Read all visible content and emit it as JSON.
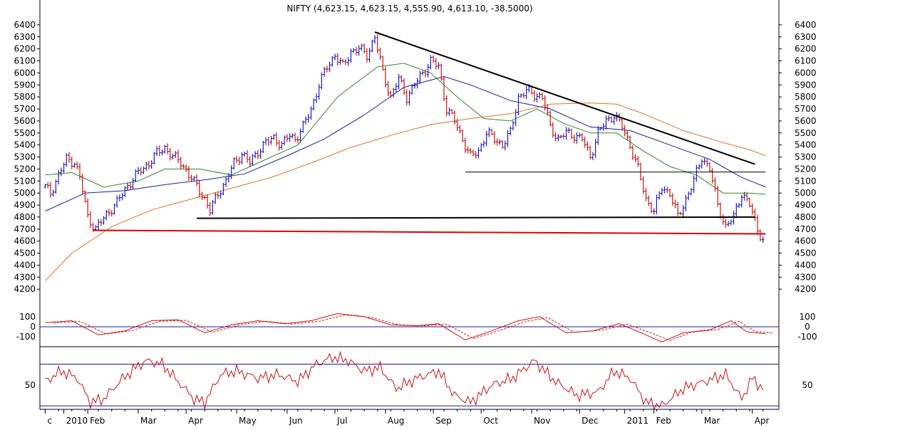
{
  "chart_data": {
    "type": "candlestick",
    "title": "NIFTY (4,623.15, 4,623.15, 4,555.90, 4,613.10, -38.5000)",
    "price_panel": {
      "ylim": [
        4130,
        6500
      ],
      "yticks": [
        4200,
        4300,
        4400,
        4500,
        4600,
        4700,
        4800,
        4900,
        5000,
        5100,
        5200,
        5300,
        5400,
        5500,
        5600,
        5700,
        5800,
        5900,
        6000,
        6100,
        6200,
        6300,
        6400
      ],
      "up_color": "#1c1cc8",
      "down_color": "#cc1111",
      "close_series": [
        {
          "x": 0,
          "y": 5050
        },
        {
          "x": 2,
          "y": 5000
        },
        {
          "x": 5,
          "y": 5150
        },
        {
          "x": 8,
          "y": 5280
        },
        {
          "x": 11,
          "y": 5260
        },
        {
          "x": 13,
          "y": 5130
        },
        {
          "x": 16,
          "y": 4800
        },
        {
          "x": 19,
          "y": 4700
        },
        {
          "x": 21,
          "y": 4760
        },
        {
          "x": 24,
          "y": 4850
        },
        {
          "x": 27,
          "y": 4920
        },
        {
          "x": 30,
          "y": 5030
        },
        {
          "x": 33,
          "y": 5120
        },
        {
          "x": 36,
          "y": 5190
        },
        {
          "x": 39,
          "y": 5250
        },
        {
          "x": 42,
          "y": 5330
        },
        {
          "x": 45,
          "y": 5380
        },
        {
          "x": 48,
          "y": 5300
        },
        {
          "x": 51,
          "y": 5260
        },
        {
          "x": 54,
          "y": 5150
        },
        {
          "x": 57,
          "y": 5060
        },
        {
          "x": 60,
          "y": 4950
        },
        {
          "x": 62,
          "y": 4850
        },
        {
          "x": 65,
          "y": 5000
        },
        {
          "x": 68,
          "y": 5100
        },
        {
          "x": 71,
          "y": 5250
        },
        {
          "x": 74,
          "y": 5330
        },
        {
          "x": 77,
          "y": 5250
        },
        {
          "x": 80,
          "y": 5350
        },
        {
          "x": 83,
          "y": 5420
        },
        {
          "x": 86,
          "y": 5460
        },
        {
          "x": 89,
          "y": 5400
        },
        {
          "x": 92,
          "y": 5480
        },
        {
          "x": 94,
          "y": 5450
        },
        {
          "x": 97,
          "y": 5550
        },
        {
          "x": 100,
          "y": 5700
        },
        {
          "x": 103,
          "y": 5900
        },
        {
          "x": 106,
          "y": 6050
        },
        {
          "x": 109,
          "y": 6150
        },
        {
          "x": 112,
          "y": 6050
        },
        {
          "x": 115,
          "y": 6180
        },
        {
          "x": 118,
          "y": 6200
        },
        {
          "x": 121,
          "y": 6150
        },
        {
          "x": 124,
          "y": 6300
        },
        {
          "x": 127,
          "y": 6000
        },
        {
          "x": 130,
          "y": 5800
        },
        {
          "x": 133,
          "y": 5950
        },
        {
          "x": 136,
          "y": 5800
        },
        {
          "x": 139,
          "y": 5900
        },
        {
          "x": 142,
          "y": 6000
        },
        {
          "x": 145,
          "y": 6100
        },
        {
          "x": 148,
          "y": 6050
        },
        {
          "x": 151,
          "y": 5700
        },
        {
          "x": 154,
          "y": 5600
        },
        {
          "x": 157,
          "y": 5450
        },
        {
          "x": 160,
          "y": 5300
        },
        {
          "x": 163,
          "y": 5350
        },
        {
          "x": 166,
          "y": 5500
        },
        {
          "x": 169,
          "y": 5450
        },
        {
          "x": 172,
          "y": 5400
        },
        {
          "x": 175,
          "y": 5500
        },
        {
          "x": 178,
          "y": 5800
        },
        {
          "x": 181,
          "y": 5850
        },
        {
          "x": 184,
          "y": 5820
        },
        {
          "x": 187,
          "y": 5800
        },
        {
          "x": 190,
          "y": 5550
        },
        {
          "x": 193,
          "y": 5450
        },
        {
          "x": 196,
          "y": 5500
        },
        {
          "x": 199,
          "y": 5480
        },
        {
          "x": 202,
          "y": 5450
        },
        {
          "x": 205,
          "y": 5300
        },
        {
          "x": 208,
          "y": 5500
        },
        {
          "x": 211,
          "y": 5600
        },
        {
          "x": 214,
          "y": 5650
        },
        {
          "x": 217,
          "y": 5550
        },
        {
          "x": 220,
          "y": 5400
        },
        {
          "x": 223,
          "y": 5200
        },
        {
          "x": 226,
          "y": 4950
        },
        {
          "x": 229,
          "y": 4850
        },
        {
          "x": 232,
          "y": 5050
        },
        {
          "x": 235,
          "y": 5000
        },
        {
          "x": 238,
          "y": 4800
        },
        {
          "x": 241,
          "y": 4950
        },
        {
          "x": 244,
          "y": 5100
        },
        {
          "x": 247,
          "y": 5300
        },
        {
          "x": 250,
          "y": 5200
        },
        {
          "x": 253,
          "y": 4900
        },
        {
          "x": 256,
          "y": 4720
        },
        {
          "x": 259,
          "y": 4800
        },
        {
          "x": 262,
          "y": 5000
        },
        {
          "x": 265,
          "y": 4900
        },
        {
          "x": 268,
          "y": 4700
        },
        {
          "x": 270,
          "y": 4613
        }
      ],
      "moving_averages": [
        {
          "color": "#2a8a2a",
          "points": [
            {
              "x": 0,
              "y": 5150
            },
            {
              "x": 10,
              "y": 5170
            },
            {
              "x": 22,
              "y": 5050
            },
            {
              "x": 35,
              "y": 5100
            },
            {
              "x": 45,
              "y": 5200
            },
            {
              "x": 58,
              "y": 5200
            },
            {
              "x": 70,
              "y": 5150
            },
            {
              "x": 80,
              "y": 5250
            },
            {
              "x": 95,
              "y": 5400
            },
            {
              "x": 110,
              "y": 5800
            },
            {
              "x": 125,
              "y": 6050
            },
            {
              "x": 135,
              "y": 6080
            },
            {
              "x": 145,
              "y": 6000
            },
            {
              "x": 155,
              "y": 5800
            },
            {
              "x": 165,
              "y": 5620
            },
            {
              "x": 175,
              "y": 5600
            },
            {
              "x": 185,
              "y": 5700
            },
            {
              "x": 195,
              "y": 5580
            },
            {
              "x": 205,
              "y": 5500
            },
            {
              "x": 215,
              "y": 5500
            },
            {
              "x": 225,
              "y": 5350
            },
            {
              "x": 235,
              "y": 5220
            },
            {
              "x": 245,
              "y": 5150
            },
            {
              "x": 255,
              "y": 5000
            },
            {
              "x": 265,
              "y": 5000
            },
            {
              "x": 271,
              "y": 4990
            }
          ]
        },
        {
          "color": "#1c1c9c",
          "points": [
            {
              "x": 0,
              "y": 4850
            },
            {
              "x": 15,
              "y": 5000
            },
            {
              "x": 30,
              "y": 5020
            },
            {
              "x": 45,
              "y": 5070
            },
            {
              "x": 60,
              "y": 5110
            },
            {
              "x": 75,
              "y": 5160
            },
            {
              "x": 90,
              "y": 5300
            },
            {
              "x": 105,
              "y": 5450
            },
            {
              "x": 120,
              "y": 5650
            },
            {
              "x": 135,
              "y": 5880
            },
            {
              "x": 150,
              "y": 5970
            },
            {
              "x": 160,
              "y": 5900
            },
            {
              "x": 175,
              "y": 5770
            },
            {
              "x": 190,
              "y": 5700
            },
            {
              "x": 205,
              "y": 5550
            },
            {
              "x": 220,
              "y": 5520
            },
            {
              "x": 235,
              "y": 5400
            },
            {
              "x": 250,
              "y": 5280
            },
            {
              "x": 262,
              "y": 5130
            },
            {
              "x": 271,
              "y": 5050
            }
          ]
        },
        {
          "color": "#e07028",
          "points": [
            {
              "x": 0,
              "y": 4270
            },
            {
              "x": 10,
              "y": 4500
            },
            {
              "x": 25,
              "y": 4720
            },
            {
              "x": 40,
              "y": 4860
            },
            {
              "x": 55,
              "y": 4950
            },
            {
              "x": 70,
              "y": 5040
            },
            {
              "x": 85,
              "y": 5130
            },
            {
              "x": 100,
              "y": 5250
            },
            {
              "x": 115,
              "y": 5380
            },
            {
              "x": 130,
              "y": 5480
            },
            {
              "x": 145,
              "y": 5570
            },
            {
              "x": 160,
              "y": 5620
            },
            {
              "x": 175,
              "y": 5660
            },
            {
              "x": 190,
              "y": 5740
            },
            {
              "x": 205,
              "y": 5750
            },
            {
              "x": 215,
              "y": 5740
            },
            {
              "x": 225,
              "y": 5660
            },
            {
              "x": 240,
              "y": 5520
            },
            {
              "x": 255,
              "y": 5420
            },
            {
              "x": 265,
              "y": 5360
            },
            {
              "x": 271,
              "y": 5310
            }
          ]
        }
      ],
      "trendlines": [
        {
          "color": "#000000",
          "width": 2,
          "x1": 124,
          "y1": 6340,
          "x2": 267,
          "y2": 5240
        },
        {
          "color": "#000000",
          "width": 2,
          "x1": 57,
          "y1": 4790,
          "x2": 267,
          "y2": 4800
        },
        {
          "color": "#000000",
          "width": 1,
          "x1": 158,
          "y1": 5175,
          "x2": 271,
          "y2": 5175
        },
        {
          "color": "#dd0000",
          "width": 2,
          "x1": 18,
          "y1": 4690,
          "x2": 271,
          "y2": 4660
        }
      ]
    },
    "macd_panel": {
      "yticks": [
        100,
        0,
        -100
      ],
      "ylim": [
        -190,
        190
      ],
      "color": "#cc1111",
      "line": [
        {
          "x": 0,
          "y": 40
        },
        {
          "x": 10,
          "y": 60
        },
        {
          "x": 20,
          "y": -80
        },
        {
          "x": 30,
          "y": -40
        },
        {
          "x": 40,
          "y": 60
        },
        {
          "x": 50,
          "y": 70
        },
        {
          "x": 60,
          "y": -60
        },
        {
          "x": 70,
          "y": 20
        },
        {
          "x": 80,
          "y": 60
        },
        {
          "x": 90,
          "y": 30
        },
        {
          "x": 100,
          "y": 60
        },
        {
          "x": 110,
          "y": 130
        },
        {
          "x": 120,
          "y": 100
        },
        {
          "x": 130,
          "y": 20
        },
        {
          "x": 140,
          "y": 10
        },
        {
          "x": 148,
          "y": 30
        },
        {
          "x": 158,
          "y": -130
        },
        {
          "x": 168,
          "y": -40
        },
        {
          "x": 178,
          "y": 60
        },
        {
          "x": 186,
          "y": 100
        },
        {
          "x": 196,
          "y": -60
        },
        {
          "x": 206,
          "y": -40
        },
        {
          "x": 216,
          "y": 30
        },
        {
          "x": 226,
          "y": -80
        },
        {
          "x": 232,
          "y": -150
        },
        {
          "x": 240,
          "y": -60
        },
        {
          "x": 250,
          "y": -30
        },
        {
          "x": 258,
          "y": 60
        },
        {
          "x": 264,
          "y": -50
        },
        {
          "x": 271,
          "y": -70
        }
      ]
    },
    "oscillator_panel": {
      "yticks": [
        50
      ],
      "ylim": [
        15,
        100
      ],
      "upper_level": 80,
      "lower_level": 20,
      "color": "#cc1111",
      "line": [
        {
          "x": 0,
          "y": 55
        },
        {
          "x": 6,
          "y": 70
        },
        {
          "x": 12,
          "y": 60
        },
        {
          "x": 17,
          "y": 25
        },
        {
          "x": 22,
          "y": 30
        },
        {
          "x": 28,
          "y": 55
        },
        {
          "x": 34,
          "y": 75
        },
        {
          "x": 38,
          "y": 85
        },
        {
          "x": 44,
          "y": 80
        },
        {
          "x": 50,
          "y": 55
        },
        {
          "x": 56,
          "y": 30
        },
        {
          "x": 60,
          "y": 25
        },
        {
          "x": 66,
          "y": 65
        },
        {
          "x": 72,
          "y": 70
        },
        {
          "x": 80,
          "y": 60
        },
        {
          "x": 88,
          "y": 65
        },
        {
          "x": 95,
          "y": 55
        },
        {
          "x": 102,
          "y": 80
        },
        {
          "x": 108,
          "y": 90
        },
        {
          "x": 114,
          "y": 85
        },
        {
          "x": 120,
          "y": 70
        },
        {
          "x": 126,
          "y": 75
        },
        {
          "x": 132,
          "y": 45
        },
        {
          "x": 140,
          "y": 60
        },
        {
          "x": 148,
          "y": 70
        },
        {
          "x": 154,
          "y": 35
        },
        {
          "x": 160,
          "y": 25
        },
        {
          "x": 168,
          "y": 50
        },
        {
          "x": 176,
          "y": 60
        },
        {
          "x": 184,
          "y": 85
        },
        {
          "x": 192,
          "y": 55
        },
        {
          "x": 200,
          "y": 35
        },
        {
          "x": 208,
          "y": 40
        },
        {
          "x": 214,
          "y": 70
        },
        {
          "x": 220,
          "y": 60
        },
        {
          "x": 226,
          "y": 25
        },
        {
          "x": 232,
          "y": 20
        },
        {
          "x": 240,
          "y": 45
        },
        {
          "x": 248,
          "y": 55
        },
        {
          "x": 256,
          "y": 65
        },
        {
          "x": 262,
          "y": 30
        },
        {
          "x": 266,
          "y": 60
        },
        {
          "x": 271,
          "y": 40
        }
      ]
    },
    "x_axis": {
      "xlim": [
        -2,
        276
      ],
      "ticks": [
        {
          "label": "c",
          "x": 0
        },
        {
          "label": "2010",
          "x": 7
        },
        {
          "label": "Feb",
          "x": 16
        },
        {
          "label": "Mar",
          "x": 35
        },
        {
          "label": "Apr",
          "x": 53
        },
        {
          "label": "May",
          "x": 72
        },
        {
          "label": "Jun",
          "x": 91
        },
        {
          "label": "Jul",
          "x": 109
        },
        {
          "label": "Aug",
          "x": 128
        },
        {
          "label": "Sep",
          "x": 146
        },
        {
          "label": "Oct",
          "x": 164
        },
        {
          "label": "Nov",
          "x": 183
        },
        {
          "label": "Dec",
          "x": 201
        },
        {
          "label": "2011",
          "x": 218
        },
        {
          "label": "Feb",
          "x": 229
        },
        {
          "label": "Mar",
          "x": 247
        },
        {
          "label": "Apr",
          "x": 266
        }
      ]
    }
  }
}
